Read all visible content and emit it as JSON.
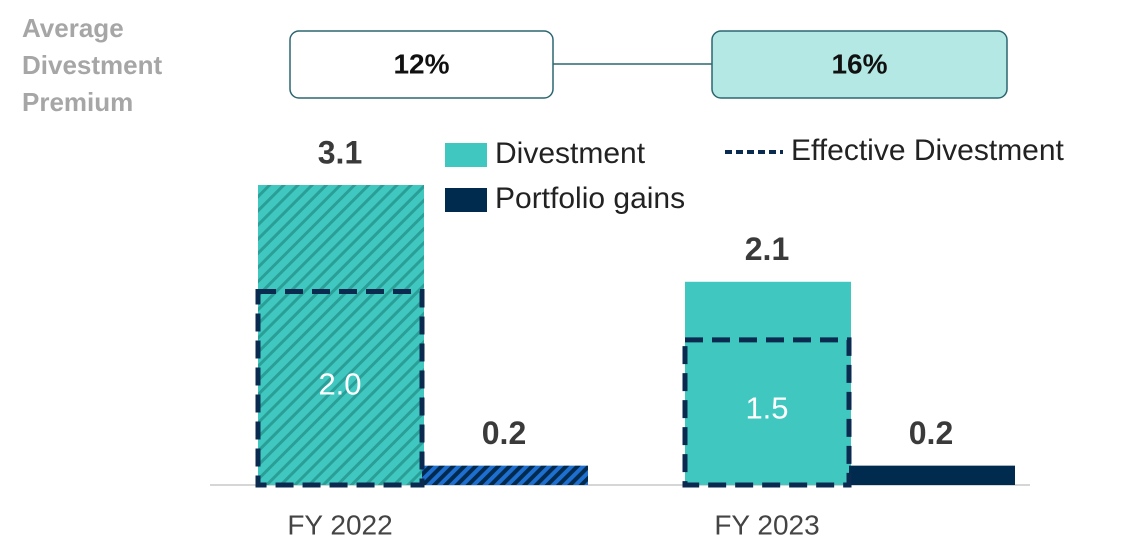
{
  "chart_data": {
    "type": "bar",
    "categories": [
      "FY 2022",
      "FY 2023"
    ],
    "hatched": [
      true,
      false
    ],
    "series": [
      {
        "name": "Divestment",
        "color": "#40c8c0",
        "values": [
          3.1,
          2.1
        ]
      },
      {
        "name": "Portfolio gains",
        "color": "#002b4f",
        "values": [
          0.2,
          0.2
        ]
      },
      {
        "name": "Effective Divestment",
        "color": "#0b2a4f",
        "style": "dashed",
        "values": [
          2.0,
          1.5
        ],
        "value_labels": [
          "2.0",
          "1.5"
        ]
      }
    ],
    "premium": {
      "label": "Average Divestment Premium",
      "values": [
        12,
        16
      ],
      "value_labels": [
        "12%",
        "16%"
      ]
    }
  }
}
